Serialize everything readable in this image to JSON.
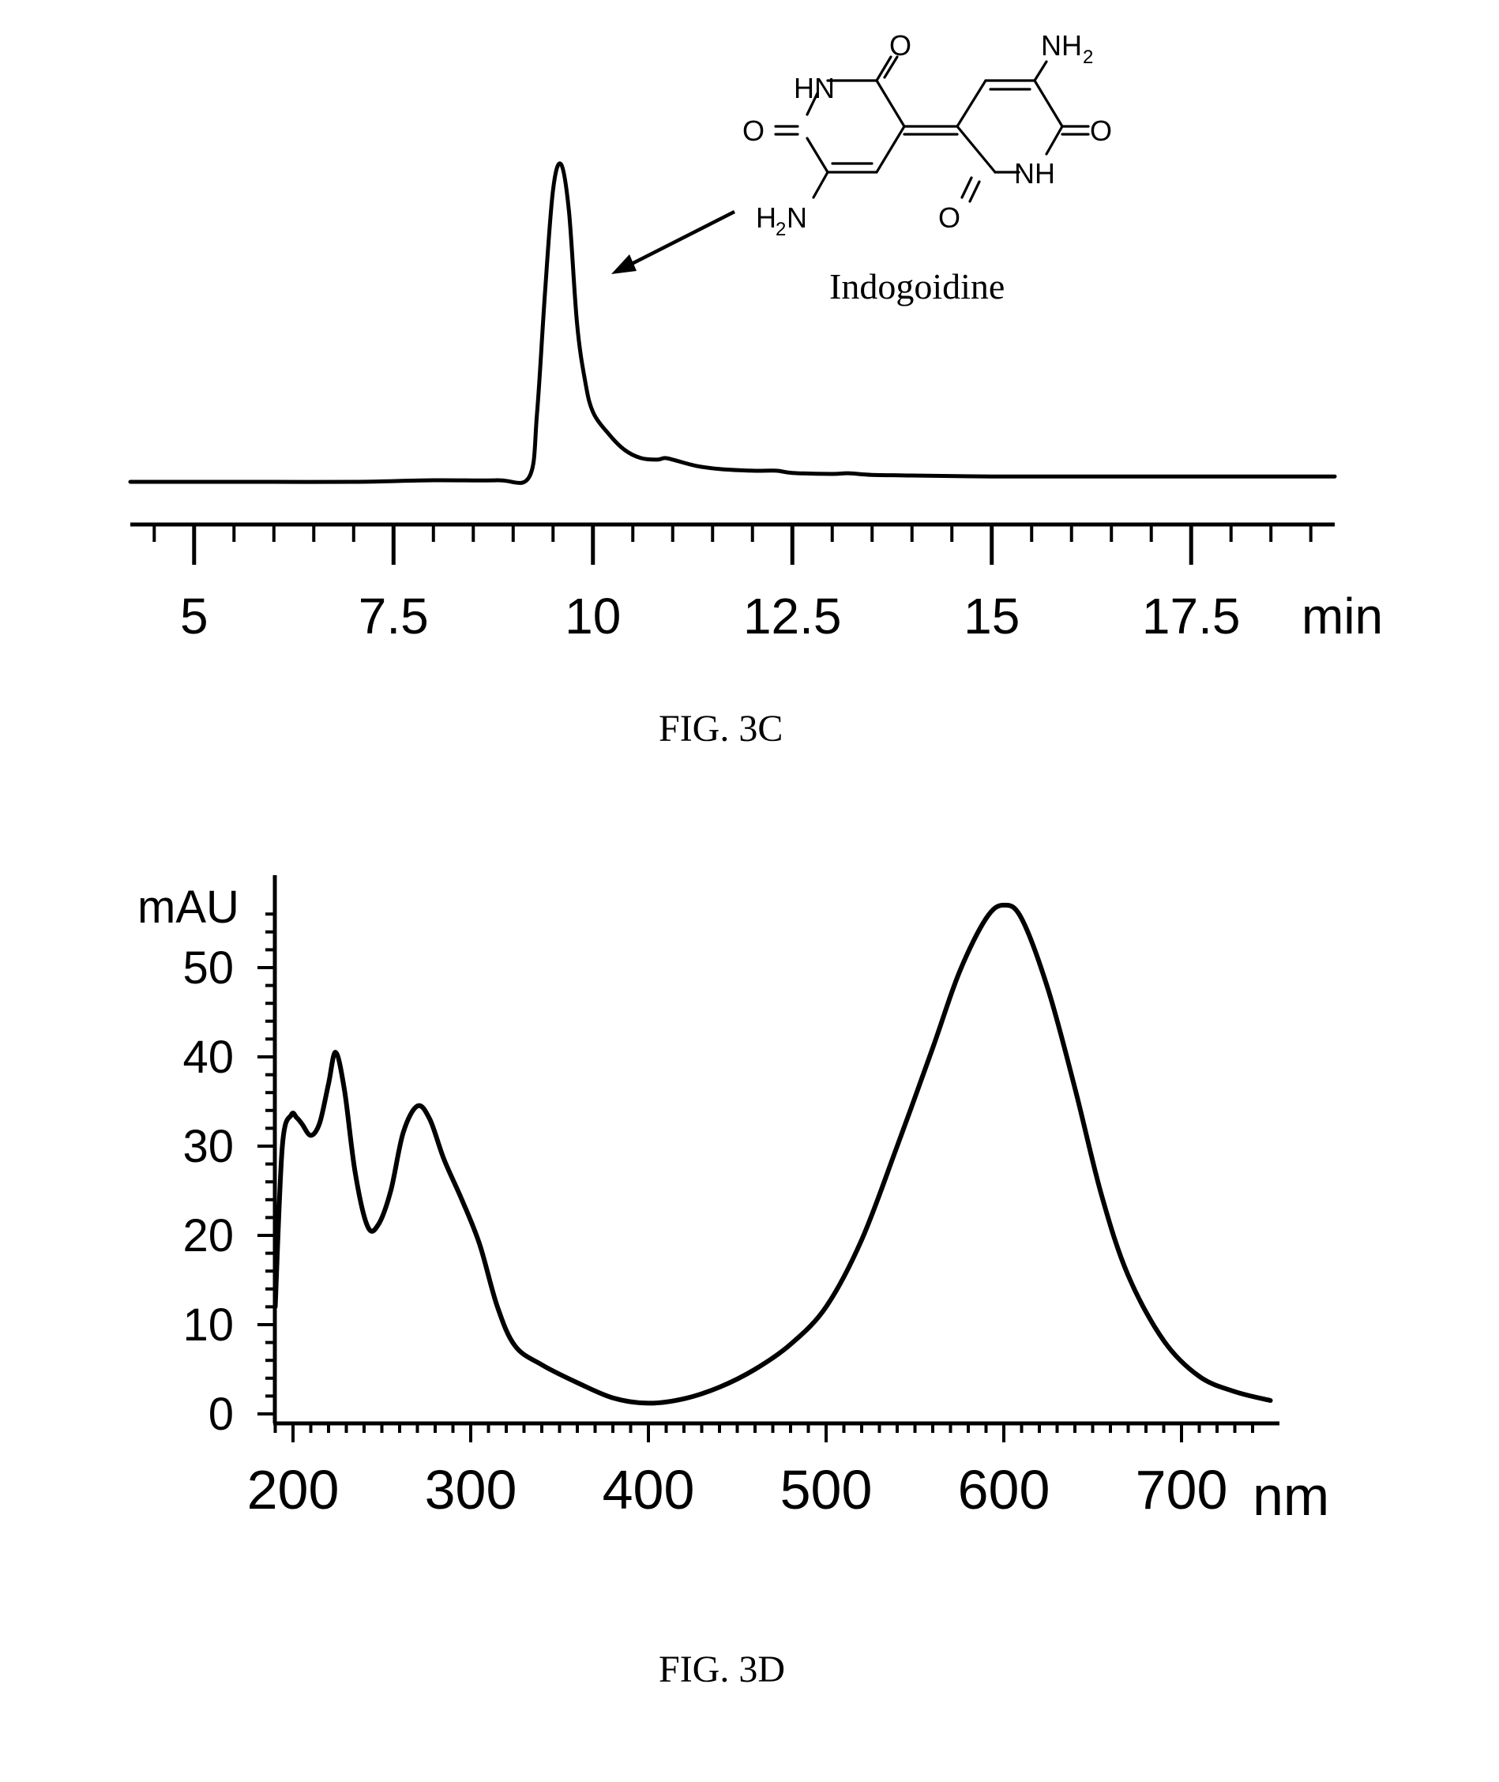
{
  "chart_data": [
    {
      "type": "line",
      "figure_label": "FIG. 3C",
      "xlabel": "min",
      "ylabel": "",
      "xlim": [
        4.2,
        19.3
      ],
      "x_ticks": [
        "5",
        "7.5",
        "10",
        "12.5",
        "15",
        "17.5"
      ],
      "x_tick_values": [
        5,
        7.5,
        10,
        12.5,
        15,
        17.5
      ],
      "y_axis_shown": false,
      "grid": false,
      "annotation": "Indogoidine",
      "annotation_points_to_x": 9.6,
      "structure_atoms": [
        "HN",
        "O",
        "NH2",
        "O",
        "H2N",
        "O",
        "NH",
        "O"
      ],
      "series": [
        {
          "x": [
            4.2,
            5.0,
            6.0,
            7.0,
            8.0,
            8.8,
            9.2,
            9.3,
            9.4,
            9.5,
            9.6,
            9.7,
            9.8,
            9.9,
            10.0,
            10.2,
            10.4,
            10.6,
            10.8,
            10.9,
            11.0,
            11.3,
            11.6,
            12.0,
            12.3,
            12.5,
            13.0,
            13.2,
            13.5,
            14.0,
            15.0,
            16.0,
            17.0,
            18.0,
            19.3
          ],
          "y": [
            0.0,
            0.0,
            0.0,
            0.0,
            0.005,
            0.005,
            0.015,
            0.22,
            0.6,
            0.92,
            1.0,
            0.85,
            0.5,
            0.32,
            0.22,
            0.15,
            0.1,
            0.075,
            0.07,
            0.075,
            0.07,
            0.05,
            0.04,
            0.035,
            0.035,
            0.028,
            0.025,
            0.027,
            0.022,
            0.02,
            0.017,
            0.017,
            0.017,
            0.017,
            0.017
          ]
        }
      ]
    },
    {
      "type": "line",
      "figure_label": "FIG. 3D",
      "xlabel": "nm",
      "ylabel": "mAU",
      "xlim": [
        190,
        750
      ],
      "ylim": [
        0,
        58
      ],
      "x_ticks": [
        "200",
        "300",
        "400",
        "500",
        "600",
        "700"
      ],
      "x_tick_values": [
        200,
        300,
        400,
        500,
        600,
        700
      ],
      "y_ticks": [
        "0",
        "10",
        "20",
        "30",
        "40",
        "50"
      ],
      "y_tick_values": [
        0,
        10,
        20,
        30,
        40,
        50
      ],
      "grid": false,
      "series": [
        {
          "x": [
            190,
            194,
            199,
            202,
            205,
            210,
            215,
            220,
            224,
            229,
            235,
            242,
            248,
            255,
            262,
            270,
            277,
            285,
            295,
            305,
            315,
            325,
            340,
            360,
            380,
            400,
            420,
            440,
            460,
            480,
            500,
            520,
            540,
            560,
            575,
            590,
            600,
            610,
            625,
            640,
            655,
            670,
            690,
            710,
            730,
            750
          ],
          "y": [
            12,
            30,
            33.5,
            33.2,
            32.5,
            31.2,
            32.6,
            37,
            40.5,
            36.2,
            27,
            21,
            21.2,
            25,
            31.5,
            34.5,
            33,
            28.5,
            24,
            19,
            12,
            7.6,
            5.5,
            3.5,
            1.8,
            1.2,
            1.7,
            3,
            5,
            7.8,
            12,
            19.5,
            30,
            41,
            49.5,
            55.5,
            57,
            55.5,
            47.5,
            36.5,
            24.5,
            15.5,
            8.2,
            4.2,
            2.5,
            1.5
          ]
        }
      ]
    }
  ]
}
